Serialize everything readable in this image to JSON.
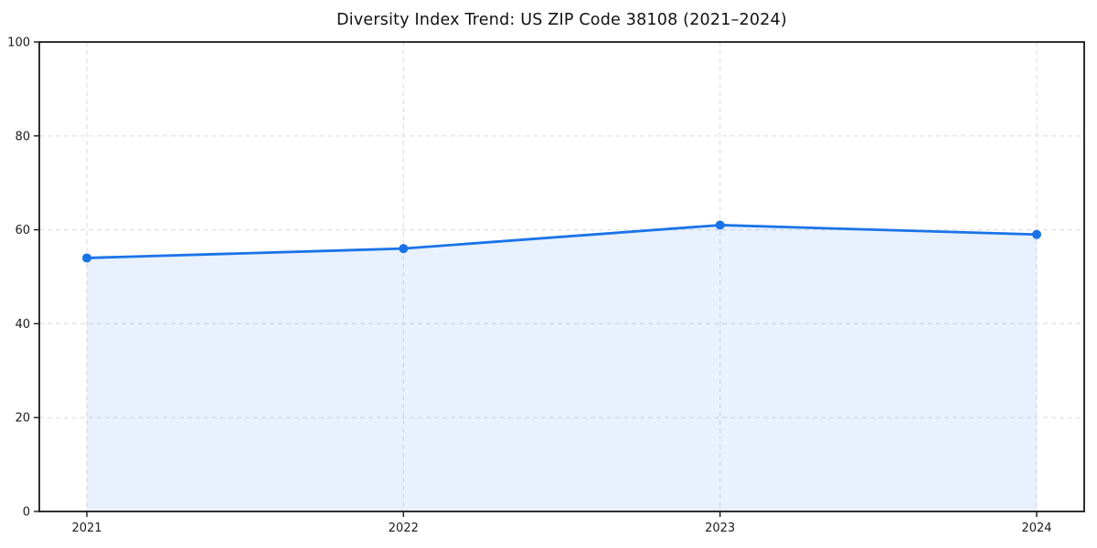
{
  "chart_data": {
    "type": "area",
    "title": "Diversity Index Trend: US ZIP Code 38108 (2021–2024)",
    "categories": [
      "2021",
      "2022",
      "2023",
      "2024"
    ],
    "values": [
      54,
      56,
      61,
      59
    ],
    "xlabel": "",
    "ylabel": "",
    "ylim": [
      0,
      100
    ],
    "yticks": [
      0,
      20,
      40,
      60,
      80,
      100
    ],
    "grid": "dashed",
    "legend": "none",
    "marker": "circle",
    "line_color": "#1a73e8",
    "fill_color": "#1a73e8",
    "fill_opacity": 0.1,
    "grid_color": "#e0e0e0",
    "spine_color": "#1a1a1a",
    "tick_text_color": "#1c1c1c"
  }
}
